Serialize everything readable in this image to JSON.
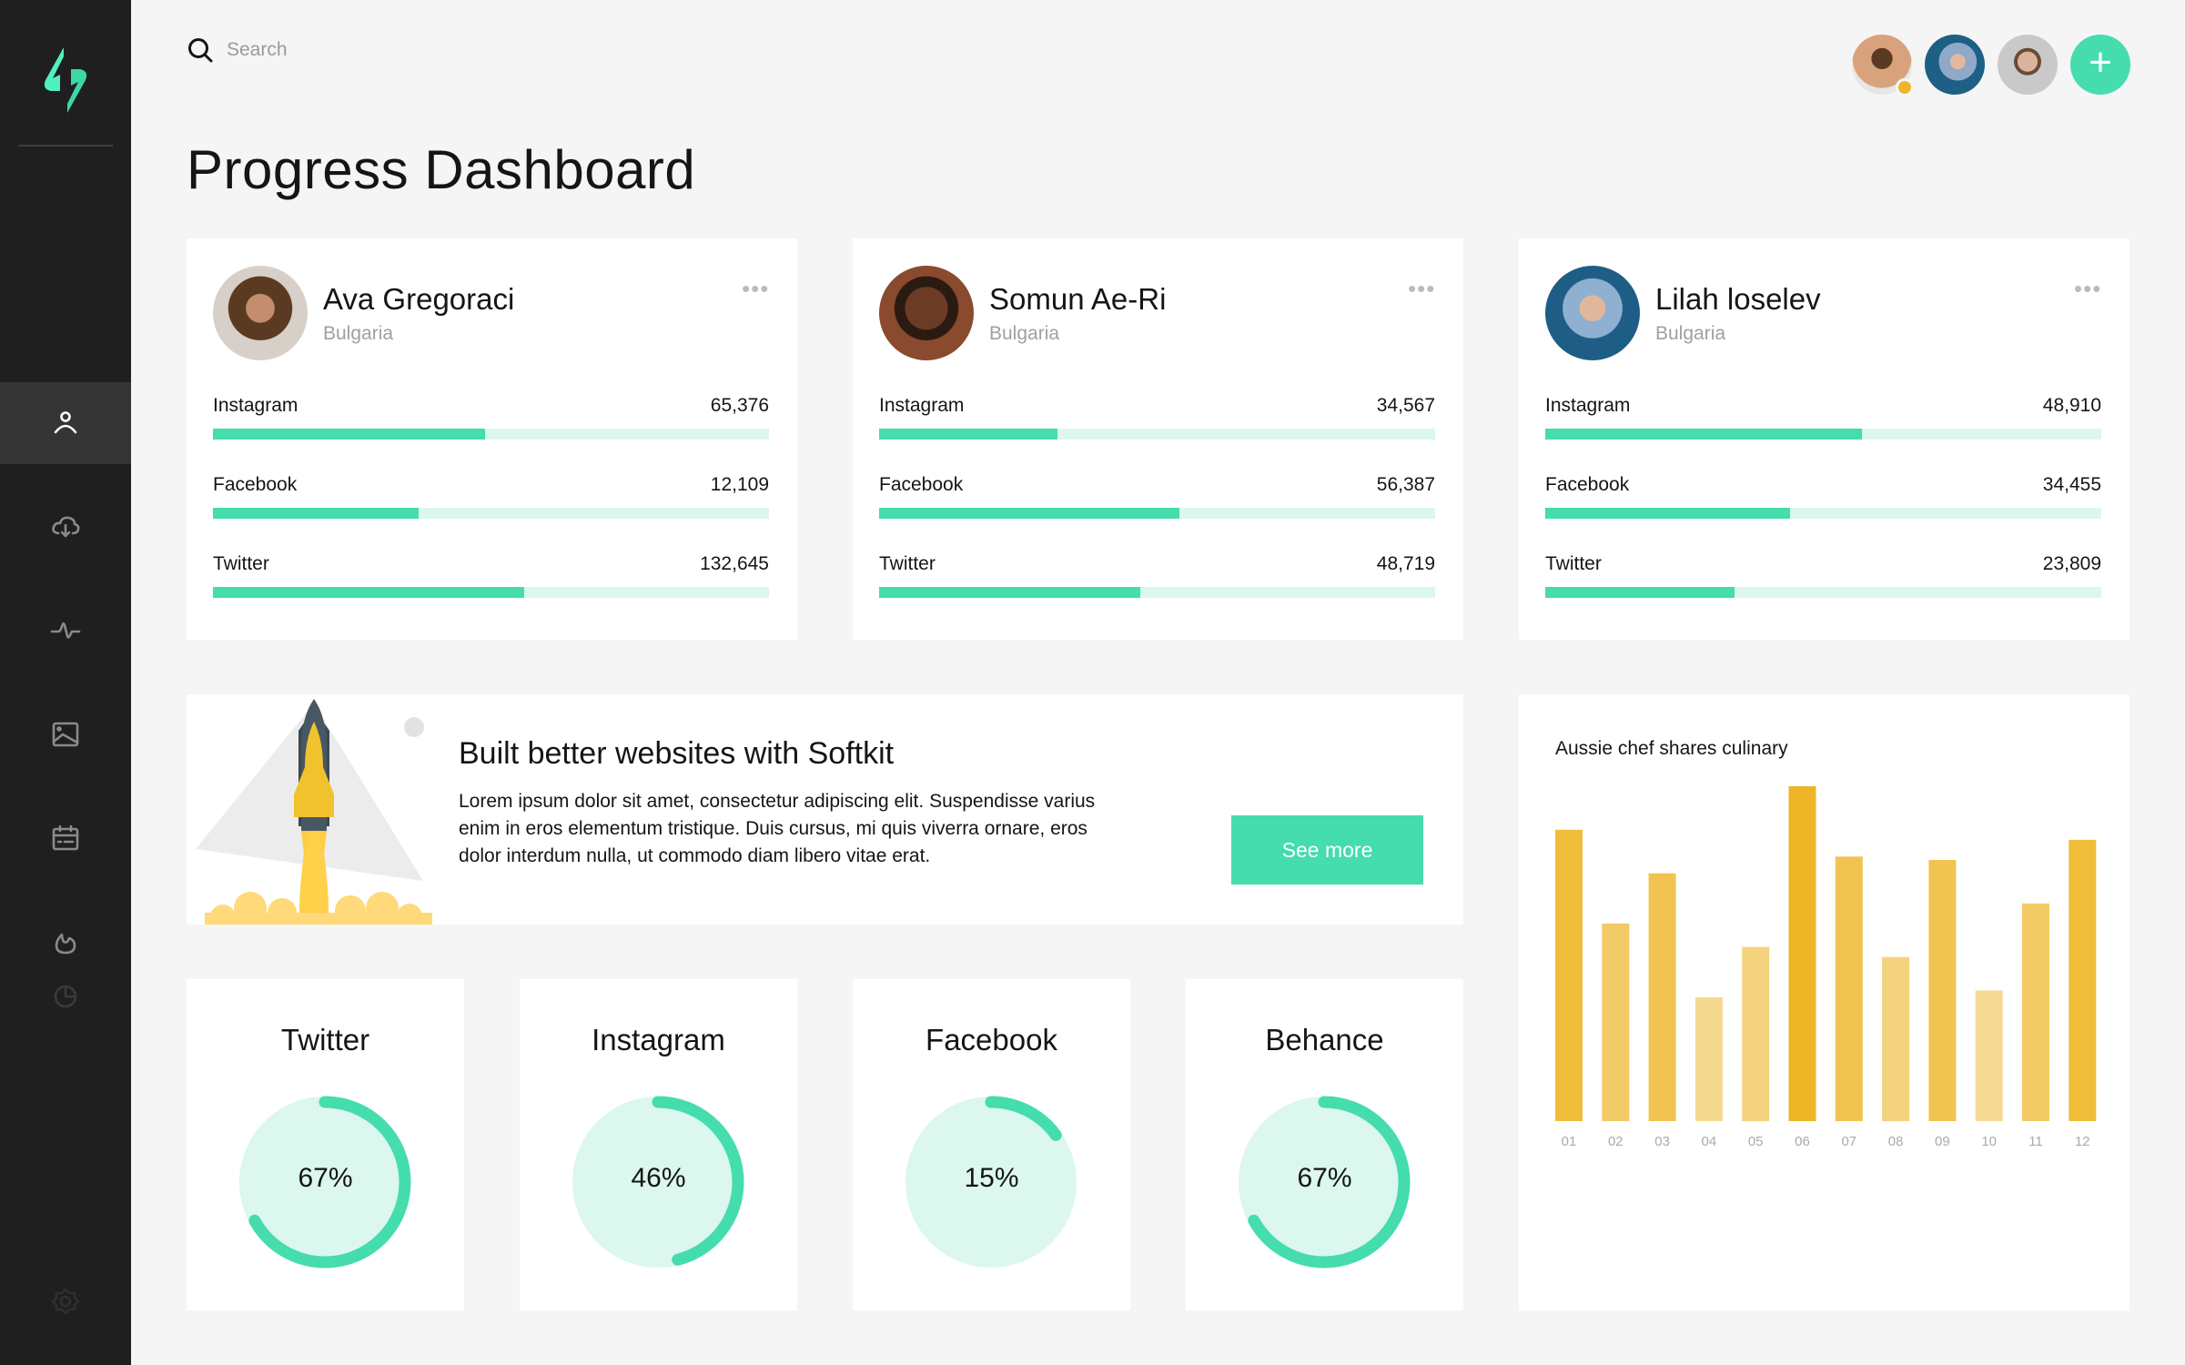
{
  "sidebar": {
    "items": [
      "user",
      "cloud-download",
      "activity",
      "image",
      "calendar",
      "fire",
      "clock",
      "settings"
    ],
    "active": 0
  },
  "search": {
    "placeholder": "Search"
  },
  "header": {
    "add_label": "+"
  },
  "page_title": "Progress Dashboard",
  "profiles": [
    {
      "name": "Ava Gregoraci",
      "country": "Bulgaria",
      "more": "•••",
      "stats": [
        {
          "label": "Instagram",
          "value": "65,376",
          "progress": 0.49
        },
        {
          "label": "Facebook",
          "value": "12,109",
          "progress": 0.37
        },
        {
          "label": "Twitter",
          "value": "132,645",
          "progress": 0.56
        }
      ]
    },
    {
      "name": "Somun Ae-Ri",
      "country": "Bulgaria",
      "more": "•••",
      "stats": [
        {
          "label": "Instagram",
          "value": "34,567",
          "progress": 0.32
        },
        {
          "label": "Facebook",
          "value": "56,387",
          "progress": 0.54
        },
        {
          "label": "Twitter",
          "value": "48,719",
          "progress": 0.47
        }
      ]
    },
    {
      "name": "Lilah loselev",
      "country": "Bulgaria",
      "more": "•••",
      "stats": [
        {
          "label": "Instagram",
          "value": "48,910",
          "progress": 0.57
        },
        {
          "label": "Facebook",
          "value": "34,455",
          "progress": 0.44
        },
        {
          "label": "Twitter",
          "value": "23,809",
          "progress": 0.34
        }
      ]
    }
  ],
  "banner": {
    "title": "Built better websites with Softkit",
    "text": "Lorem ipsum dolor sit amet, consectetur adipiscing elit. Suspendisse varius enim in eros elementum tristique. Duis cursus, mi quis viverra ornare, eros dolor interdum nulla, ut commodo diam libero vitae erat.",
    "button": "See more"
  },
  "social": [
    {
      "title": "Twitter",
      "percent": "67%",
      "value": 67
    },
    {
      "title": "Instagram",
      "percent": "46%",
      "value": 46
    },
    {
      "title": "Facebook",
      "percent": "15%",
      "value": 15
    },
    {
      "title": "Behance",
      "percent": "67%",
      "value": 67
    }
  ],
  "colors": {
    "accent": "#45dcae",
    "accent_light": "#dbf7ee",
    "sidebar": "#1f1f1f",
    "status": "#eeb627"
  },
  "chart_data": {
    "type": "bar",
    "title": "Aussie chef shares culinary",
    "categories": [
      "01",
      "02",
      "03",
      "04",
      "05",
      "06",
      "07",
      "08",
      "09",
      "10",
      "11",
      "12"
    ],
    "values": [
      87,
      59,
      74,
      37,
      52,
      100,
      79,
      49,
      78,
      39,
      65,
      84
    ],
    "colors": [
      "#f0bd3b",
      "#f2ca66",
      "#f1c452",
      "#f5d98f",
      "#f4d37e",
      "#eeb627",
      "#f1c452",
      "#f4d37e",
      "#f1c452",
      "#f6da94",
      "#f2ca66",
      "#f0bd3b"
    ],
    "grid": false
  }
}
